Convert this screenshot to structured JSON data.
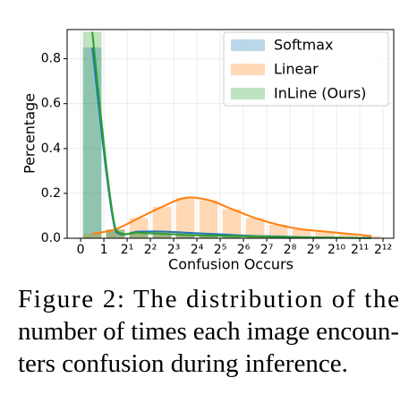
{
  "chart_data": {
    "type": "histogram",
    "xlabel": "Confusion Occurs",
    "ylabel": "Percentage",
    "bins": [
      0,
      1,
      2,
      3,
      4,
      5,
      6,
      7,
      8,
      9,
      10,
      11,
      12,
      13
    ],
    "series": [
      {
        "name": "Softmax",
        "color": "#1f77b4",
        "values": [
          0.85,
          0.03,
          0.03,
          0.03,
          0.025,
          0.02,
          0.015,
          0.01,
          0.008,
          0.005,
          0.003,
          0.002,
          0.001
        ]
      },
      {
        "name": "Linear",
        "color": "#ff7f0e",
        "values": [
          0.02,
          0.04,
          0.09,
          0.14,
          0.18,
          0.17,
          0.13,
          0.09,
          0.06,
          0.04,
          0.03,
          0.02,
          0.01
        ]
      },
      {
        "name": "InLine (Ours)",
        "color": "#2ca02c",
        "values": [
          0.92,
          0.04,
          0.025,
          0.02,
          0.015,
          0.012,
          0.01,
          0.008,
          0.006,
          0.004,
          0.003,
          0.002,
          0.001
        ]
      }
    ],
    "xlim": [
      -0.58,
      13.46
    ],
    "ylim": [
      0,
      0.93
    ],
    "xticks": [
      {
        "value": 0,
        "label": "0"
      },
      {
        "value": 1,
        "label": "1"
      },
      {
        "value": 2,
        "label": "2¹"
      },
      {
        "value": 3,
        "label": "2²"
      },
      {
        "value": 4,
        "label": "2³"
      },
      {
        "value": 5,
        "label": "2⁴"
      },
      {
        "value": 6,
        "label": "2⁵"
      },
      {
        "value": 7,
        "label": "2⁶"
      },
      {
        "value": 8,
        "label": "2⁷"
      },
      {
        "value": 9,
        "label": "2⁸"
      },
      {
        "value": 10,
        "label": "2⁹"
      },
      {
        "value": 11,
        "label": "2¹⁰"
      },
      {
        "value": 12,
        "label": "2¹¹"
      },
      {
        "value": 13,
        "label": "2¹²"
      }
    ],
    "yticks": [
      {
        "value": 0,
        "label": "0.0"
      },
      0.2,
      0.4,
      0.6,
      0.8
    ],
    "grid": true,
    "legend": "upper right"
  },
  "caption": {
    "lines": [
      "Figure 2:  The distribution of the",
      "number of times each image encoun-",
      "ters confusion during inference."
    ]
  }
}
